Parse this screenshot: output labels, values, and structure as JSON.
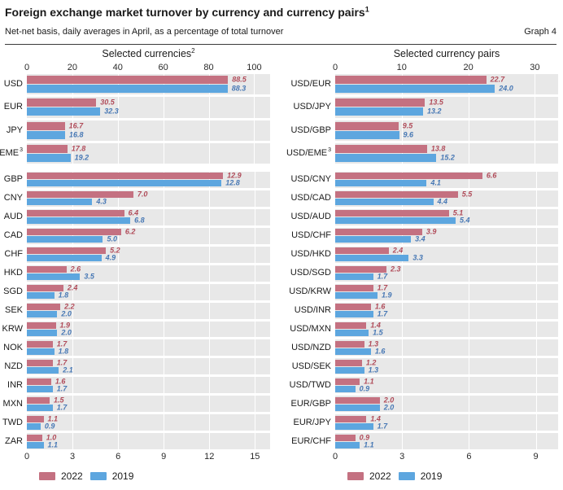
{
  "header": {
    "title": "Foreign exchange market turnover by currency and currency pairs",
    "title_sup": "1",
    "subtitle": "Net-net basis, daily averages in April, as a percentage of total turnover",
    "graph_label": "Graph 4"
  },
  "colors": {
    "bar2022": "#c47181",
    "bar2019": "#5da6df",
    "label2022": "#b04b59",
    "label2019": "#4677b4",
    "panel_bg": "#e8e8e8",
    "gridline": "#ffffff"
  },
  "legend": {
    "items": [
      {
        "label": "2022",
        "color": "#c47181"
      },
      {
        "label": "2019",
        "color": "#5da6df"
      }
    ]
  },
  "chart_data": {
    "type": "bar",
    "orientation": "horizontal",
    "grid": true,
    "legend_position": "bottom",
    "panels": [
      {
        "title": "Selected currencies",
        "title_sup": "2",
        "axis_side": "top",
        "ticks": [
          0,
          20,
          40,
          60,
          80,
          100
        ],
        "axis_max": 107,
        "categories": [
          {
            "label": "USD"
          },
          {
            "label": "EUR"
          },
          {
            "label": "JPY"
          },
          {
            "label": "EME",
            "sup": "3"
          }
        ],
        "series": [
          {
            "name": "2022",
            "values": [
              88.5,
              30.5,
              16.7,
              17.8
            ]
          },
          {
            "name": "2019",
            "values": [
              88.3,
              32.3,
              16.8,
              19.2
            ]
          }
        ]
      },
      {
        "title": "Selected currency pairs",
        "axis_side": "top",
        "ticks": [
          0,
          10,
          20,
          30
        ],
        "axis_max": 33.5,
        "categories": [
          {
            "label": "USD/EUR"
          },
          {
            "label": "USD/JPY"
          },
          {
            "label": "USD/GBP"
          },
          {
            "label": "USD/EME",
            "sup": "3"
          }
        ],
        "series": [
          {
            "name": "2022",
            "values": [
              22.7,
              13.5,
              9.5,
              13.8
            ]
          },
          {
            "name": "2019",
            "values": [
              24.0,
              13.2,
              9.6,
              15.2
            ]
          }
        ]
      },
      {
        "title": "",
        "axis_side": "bottom",
        "ticks": [
          0,
          3,
          6,
          9,
          12,
          15
        ],
        "axis_max": 16,
        "categories": [
          {
            "label": "GBP"
          },
          {
            "label": "CNY"
          },
          {
            "label": "AUD"
          },
          {
            "label": "CAD"
          },
          {
            "label": "CHF"
          },
          {
            "label": "HKD"
          },
          {
            "label": "SGD"
          },
          {
            "label": "SEK"
          },
          {
            "label": "KRW"
          },
          {
            "label": "NOK"
          },
          {
            "label": "NZD"
          },
          {
            "label": "INR"
          },
          {
            "label": "MXN"
          },
          {
            "label": "TWD"
          },
          {
            "label": "ZAR"
          }
        ],
        "series": [
          {
            "name": "2022",
            "values": [
              12.9,
              7.0,
              6.4,
              6.2,
              5.2,
              2.6,
              2.4,
              2.2,
              1.9,
              1.7,
              1.7,
              1.6,
              1.5,
              1.1,
              1.0
            ]
          },
          {
            "name": "2019",
            "values": [
              12.8,
              4.3,
              6.8,
              5.0,
              4.9,
              3.5,
              1.8,
              2.0,
              2.0,
              1.8,
              2.1,
              1.7,
              1.7,
              0.9,
              1.1
            ]
          }
        ]
      },
      {
        "title": "",
        "axis_side": "bottom",
        "ticks": [
          0,
          3,
          6,
          9
        ],
        "axis_max": 10,
        "categories": [
          {
            "label": "USD/CNY"
          },
          {
            "label": "USD/CAD"
          },
          {
            "label": "USD/AUD"
          },
          {
            "label": "USD/CHF"
          },
          {
            "label": "USD/HKD"
          },
          {
            "label": "USD/SGD"
          },
          {
            "label": "USD/KRW"
          },
          {
            "label": "USD/INR"
          },
          {
            "label": "USD/MXN"
          },
          {
            "label": "USD/NZD"
          },
          {
            "label": "USD/SEK"
          },
          {
            "label": "USD/TWD"
          },
          {
            "label": "EUR/GBP"
          },
          {
            "label": "EUR/JPY"
          },
          {
            "label": "EUR/CHF"
          }
        ],
        "series": [
          {
            "name": "2022",
            "values": [
              6.6,
              5.5,
              5.1,
              3.9,
              2.4,
              2.3,
              1.7,
              1.6,
              1.4,
              1.3,
              1.2,
              1.1,
              2.0,
              1.4,
              0.9
            ]
          },
          {
            "name": "2019",
            "values": [
              4.1,
              4.4,
              5.4,
              3.4,
              3.3,
              1.7,
              1.9,
              1.7,
              1.5,
              1.6,
              1.3,
              0.9,
              2.0,
              1.7,
              1.1
            ]
          }
        ]
      }
    ]
  }
}
